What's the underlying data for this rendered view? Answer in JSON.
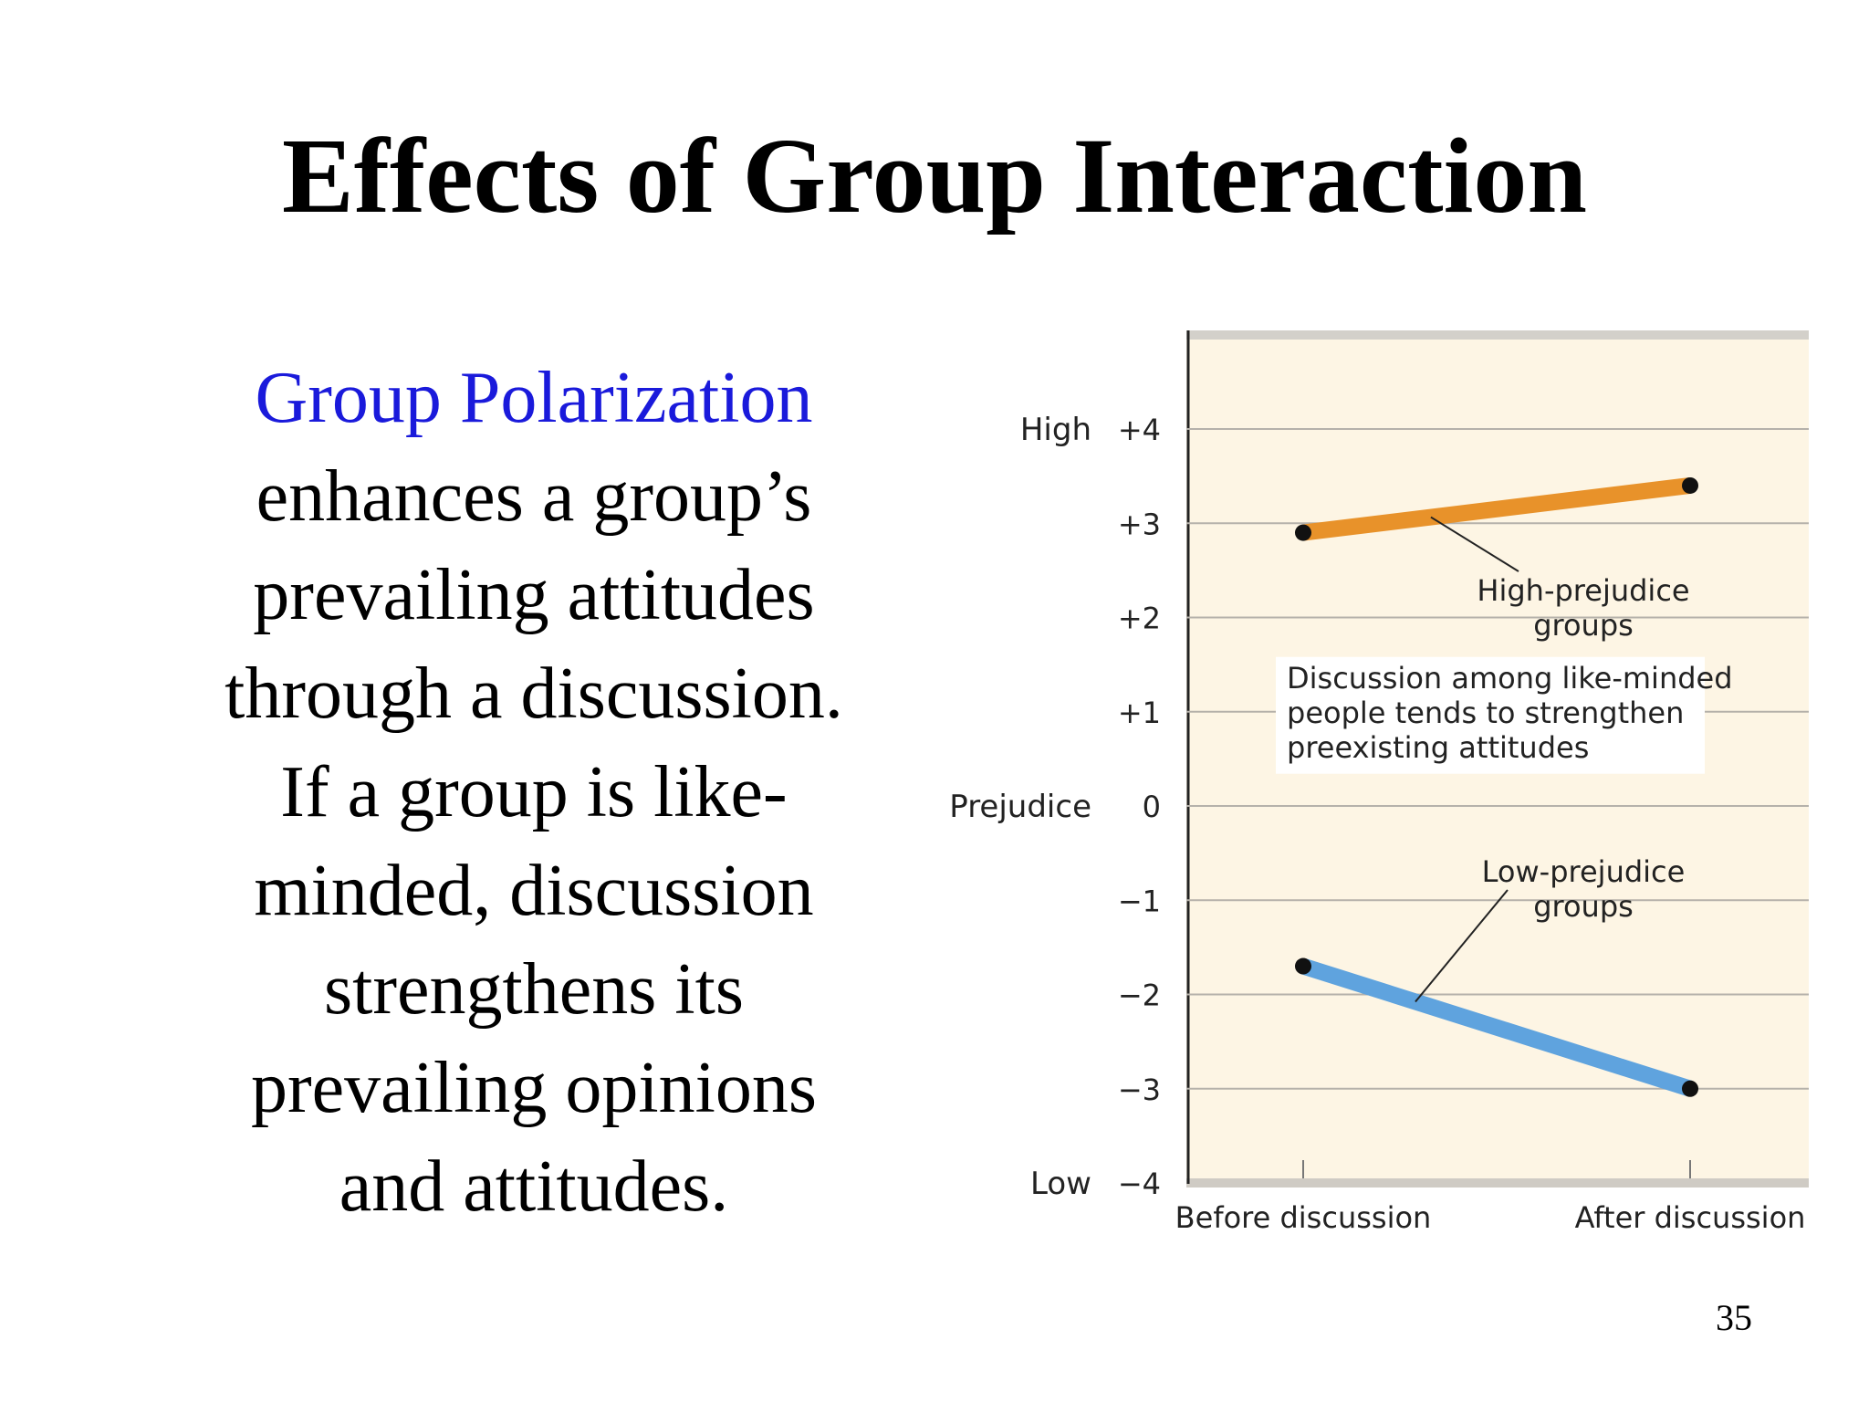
{
  "slide": {
    "title": "Effects of Group Interaction",
    "body_lines": [
      {
        "text": "Group Polarization",
        "highlight": true
      },
      {
        "text": "enhances a group’s",
        "highlight": false
      },
      {
        "text": "prevailing attitudes",
        "highlight": false
      },
      {
        "text": "through a discussion.",
        "highlight": false
      },
      {
        "text": "If a group is like-",
        "highlight": false
      },
      {
        "text": "minded, discussion",
        "highlight": false
      },
      {
        "text": "strengthens its",
        "highlight": false
      },
      {
        "text": "prevailing opinions",
        "highlight": false
      },
      {
        "text": "and attitudes.",
        "highlight": false
      }
    ],
    "page_number": "35",
    "highlight_color": "#1a1adb"
  },
  "chart_data": {
    "type": "line",
    "title": "",
    "xlabel": "",
    "ylabel": "Prejudice",
    "categories": [
      "Before discussion",
      "After discussion"
    ],
    "ylim": [
      -4,
      4
    ],
    "yticks": [
      4,
      3,
      2,
      1,
      0,
      -1,
      -2,
      -3,
      -4
    ],
    "ytick_labels": [
      "+4",
      "+3",
      "+2",
      "+1",
      "0",
      "−1",
      "−2",
      "−3",
      "−4"
    ],
    "y_side_labels": {
      "top": "High",
      "bottom": "Low"
    },
    "grid": true,
    "background": "#fdf5e4",
    "series": [
      {
        "name": "High-prejudice groups",
        "name_lines": [
          "High-prejudice",
          "groups"
        ],
        "values": [
          2.9,
          3.4
        ],
        "color": "#e8922a"
      },
      {
        "name": "Low-prejudice groups",
        "name_lines": [
          "Low-prejudice",
          "groups"
        ],
        "values": [
          -1.7,
          -3.0
        ],
        "color": "#5fa3de"
      }
    ],
    "annotation": {
      "lines": [
        "Discussion among like-minded",
        "people tends to strengthen",
        "preexisting attitudes"
      ],
      "y_value": 1.0
    }
  }
}
